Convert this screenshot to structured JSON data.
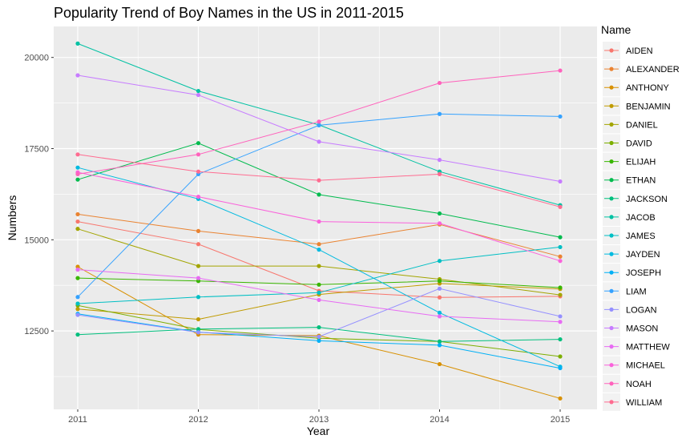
{
  "chart_data": {
    "type": "line",
    "title": "Popularity Trend of Boy Names in the US in 2011-2015",
    "xlabel": "Year",
    "ylabel": "Numbers",
    "x": [
      2011,
      2012,
      2013,
      2014,
      2015
    ],
    "x_tick_labels": [
      "2011",
      "2012",
      "2013",
      "2014",
      "2015"
    ],
    "ylim": [
      10350,
      20850
    ],
    "y_ticks": [
      12500,
      15000,
      17500,
      20000
    ],
    "y_tick_labels": [
      "12500",
      "15000",
      "17500",
      "20000"
    ],
    "grid": true,
    "legend": {
      "title": "Name",
      "placement": "right"
    },
    "series": [
      {
        "name": "AIDEN",
        "color": "#F8766D",
        "values": [
          15500,
          14880,
          13600,
          13420,
          13450
        ]
      },
      {
        "name": "ALEXANDER",
        "color": "#EA8331",
        "values": [
          15700,
          15240,
          14880,
          15420,
          14540
        ]
      },
      {
        "name": "ANTHONY",
        "color": "#D89000",
        "values": [
          14260,
          12400,
          12370,
          11590,
          10650
        ]
      },
      {
        "name": "BENJAMIN",
        "color": "#C09B00",
        "values": [
          13100,
          12820,
          13500,
          13800,
          13650
        ]
      },
      {
        "name": "DANIEL",
        "color": "#A3A500",
        "values": [
          15300,
          14280,
          14280,
          13920,
          13490
        ]
      },
      {
        "name": "DAVID",
        "color": "#7CAE00",
        "values": [
          13200,
          12540,
          12300,
          12210,
          11800
        ]
      },
      {
        "name": "ELIJAH",
        "color": "#39B600",
        "values": [
          13950,
          13870,
          13770,
          13870,
          13690
        ]
      },
      {
        "name": "ETHAN",
        "color": "#00BB4E",
        "values": [
          16650,
          17650,
          16240,
          15720,
          15070
        ]
      },
      {
        "name": "JACKSON",
        "color": "#00BF7D",
        "values": [
          12400,
          12550,
          12600,
          12210,
          12270
        ]
      },
      {
        "name": "JACOB",
        "color": "#00C1A3",
        "values": [
          20380,
          19080,
          18150,
          16870,
          15950
        ]
      },
      {
        "name": "JAMES",
        "color": "#00BFC4",
        "values": [
          13250,
          13430,
          13550,
          14420,
          14800
        ]
      },
      {
        "name": "JAYDEN",
        "color": "#00BAE0",
        "values": [
          16980,
          16120,
          14730,
          13000,
          11520
        ]
      },
      {
        "name": "JOSEPH",
        "color": "#00B0F6",
        "values": [
          12970,
          12470,
          12230,
          12110,
          11480
        ]
      },
      {
        "name": "LIAM",
        "color": "#35A2FF",
        "values": [
          13430,
          16800,
          18140,
          18450,
          18380
        ]
      },
      {
        "name": "LOGAN",
        "color": "#9590FF",
        "values": [
          12940,
          12460,
          12340,
          13660,
          12900
        ]
      },
      {
        "name": "MASON",
        "color": "#C77CFF",
        "values": [
          19510,
          18970,
          17690,
          17190,
          16600
        ]
      },
      {
        "name": "MATTHEW",
        "color": "#E76BF3",
        "values": [
          14180,
          13950,
          13350,
          12900,
          12750
        ]
      },
      {
        "name": "MICHAEL",
        "color": "#FA62DB",
        "values": [
          16850,
          16180,
          15500,
          15450,
          14420
        ]
      },
      {
        "name": "NOAH",
        "color": "#FF62BC",
        "values": [
          16800,
          17340,
          18240,
          19300,
          19640
        ]
      },
      {
        "name": "WILLIAM",
        "color": "#FF6C91",
        "values": [
          17340,
          16870,
          16630,
          16800,
          15900
        ]
      }
    ]
  }
}
